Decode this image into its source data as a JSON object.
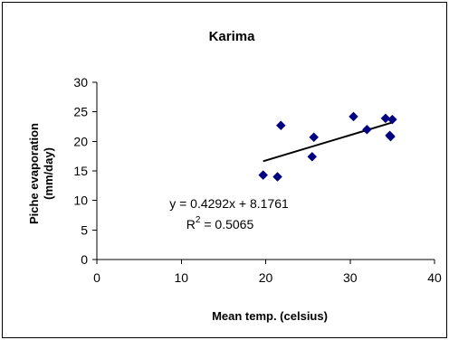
{
  "chart_data": {
    "type": "scatter",
    "title": "Karima",
    "xlabel": "Mean temp. (celsius)",
    "ylabel_line1": "Piche evaporation",
    "ylabel_line2": "(mm/day)",
    "xlim": [
      0,
      40
    ],
    "ylim": [
      0,
      30
    ],
    "xticks": [
      0,
      10,
      20,
      30,
      40
    ],
    "yticks": [
      0,
      5,
      10,
      15,
      20,
      25,
      30
    ],
    "grid": false,
    "legend": "none",
    "point_color": "#000080",
    "trend_color": "#000000",
    "points": [
      {
        "x": 19.7,
        "y": 14.3
      },
      {
        "x": 21.4,
        "y": 14.0
      },
      {
        "x": 21.8,
        "y": 22.7
      },
      {
        "x": 25.5,
        "y": 17.4
      },
      {
        "x": 25.7,
        "y": 20.7
      },
      {
        "x": 30.4,
        "y": 24.2
      },
      {
        "x": 32.0,
        "y": 22.0
      },
      {
        "x": 34.2,
        "y": 23.9
      },
      {
        "x": 34.7,
        "y": 21.0
      },
      {
        "x": 34.8,
        "y": 20.8
      },
      {
        "x": 35.0,
        "y": 23.7
      }
    ],
    "trendline": {
      "slope": 0.4292,
      "intercept": 8.1761,
      "x_range": [
        19.7,
        35.0
      ],
      "equation": "y = 0.4292x + 8.1761",
      "r2_prefix": "R",
      "r2_sup": "2",
      "r2_value": " = 0.5065"
    }
  }
}
